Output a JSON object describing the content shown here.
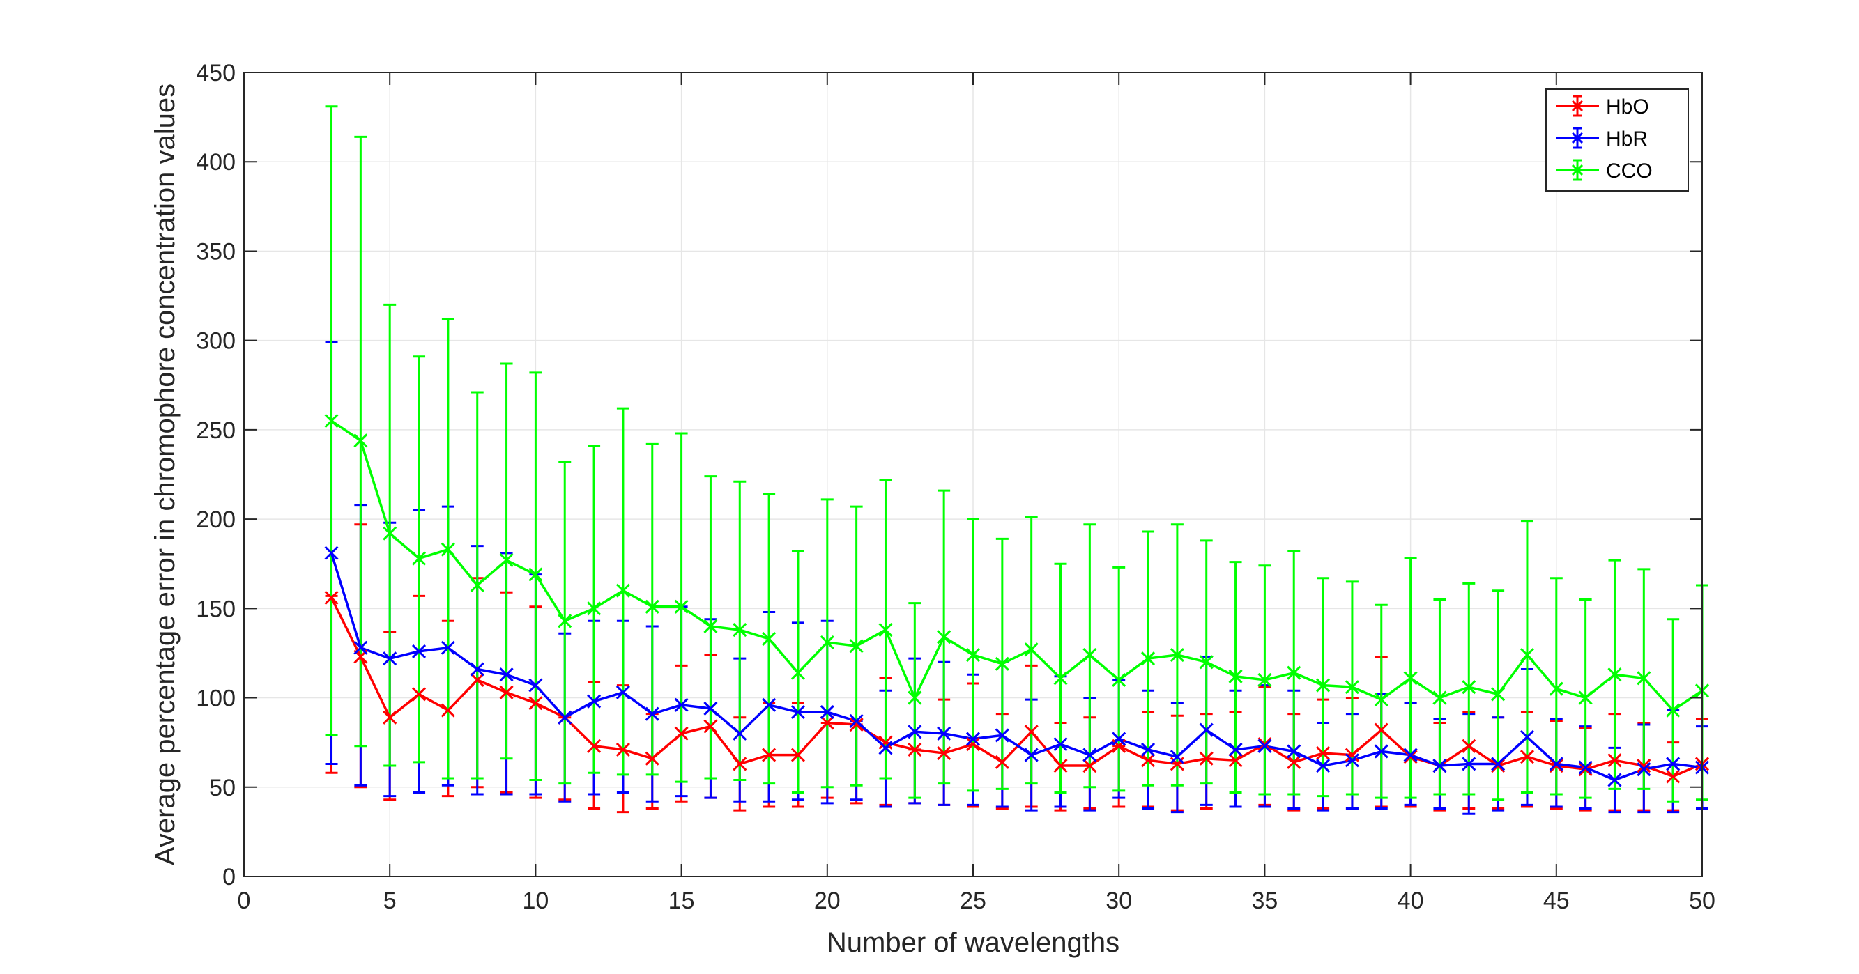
{
  "chart_data": {
    "type": "line",
    "title": "",
    "xlabel": "Number of wavelengths",
    "ylabel": "Average percentage error in chromophore concentration values",
    "xlim": [
      0,
      50
    ],
    "ylim": [
      0,
      450
    ],
    "xticks": [
      0,
      5,
      10,
      15,
      20,
      25,
      30,
      35,
      40,
      45,
      50
    ],
    "yticks": [
      0,
      50,
      100,
      150,
      200,
      250,
      300,
      350,
      400,
      450
    ],
    "grid": true,
    "legend_position": "top-right",
    "error_bars": true,
    "x": [
      3,
      4,
      5,
      6,
      7,
      8,
      9,
      10,
      11,
      12,
      13,
      14,
      15,
      16,
      17,
      18,
      19,
      20,
      21,
      22,
      23,
      24,
      25,
      26,
      27,
      28,
      29,
      30,
      31,
      32,
      33,
      34,
      35,
      36,
      37,
      38,
      39,
      40,
      41,
      42,
      43,
      44,
      45,
      46,
      47,
      48,
      49,
      50
    ],
    "series": [
      {
        "name": "HbO",
        "color": "#ff0000",
        "values": [
          156,
          123,
          89,
          102,
          93,
          110,
          103,
          97,
          89,
          73,
          71,
          66,
          80,
          84,
          63,
          68,
          68,
          86,
          85,
          75,
          71,
          69,
          74,
          64,
          81,
          62,
          62,
          73,
          65,
          63,
          66,
          65,
          74,
          64,
          69,
          68,
          82,
          67,
          62,
          73,
          62,
          67,
          62,
          60,
          65,
          62,
          56,
          63
        ],
        "upper": [
          157,
          197,
          137,
          157,
          143,
          167,
          159,
          151,
          89,
          109,
          107,
          91,
          118,
          124,
          89,
          97,
          97,
          86,
          85,
          111,
          71,
          99,
          108,
          91,
          118,
          86,
          89,
          73,
          92,
          90,
          91,
          92,
          106,
          91,
          99,
          100,
          123,
          97,
          86,
          92,
          89,
          92,
          87,
          83,
          91,
          86,
          75,
          88
        ],
        "lower": [
          58,
          50,
          43,
          47,
          45,
          50,
          47,
          44,
          43,
          38,
          36,
          38,
          42,
          44,
          37,
          39,
          39,
          44,
          41,
          40,
          41,
          40,
          39,
          38,
          39,
          37,
          38,
          39,
          39,
          37,
          38,
          39,
          40,
          37,
          38,
          38,
          39,
          39,
          37,
          38,
          38,
          39,
          38,
          37,
          37,
          37,
          37,
          38
        ]
      },
      {
        "name": "HbR",
        "color": "#0000ff",
        "values": [
          181,
          128,
          122,
          126,
          128,
          116,
          113,
          107,
          89,
          98,
          103,
          91,
          96,
          94,
          80,
          96,
          92,
          92,
          87,
          72,
          81,
          80,
          77,
          79,
          68,
          74,
          68,
          77,
          71,
          67,
          82,
          71,
          73,
          70,
          62,
          65,
          70,
          68,
          62,
          63,
          63,
          78,
          63,
          61,
          54,
          60,
          63,
          61
        ],
        "upper": [
          299,
          208,
          198,
          205,
          207,
          185,
          181,
          169,
          136,
          143,
          143,
          140,
          151,
          144,
          122,
          148,
          142,
          143,
          87,
          104,
          122,
          120,
          113,
          120,
          99,
          112,
          100,
          110,
          104,
          97,
          123,
          104,
          107,
          104,
          86,
          91,
          102,
          97,
          88,
          91,
          89,
          116,
          88,
          84,
          72,
          85,
          93,
          84
        ],
        "lower": [
          63,
          51,
          45,
          47,
          51,
          46,
          46,
          46,
          42,
          46,
          47,
          42,
          45,
          44,
          42,
          42,
          43,
          41,
          43,
          39,
          41,
          40,
          40,
          39,
          37,
          39,
          37,
          44,
          38,
          36,
          40,
          39,
          39,
          38,
          37,
          38,
          38,
          40,
          38,
          35,
          37,
          40,
          39,
          38,
          36,
          36,
          36,
          38
        ]
      },
      {
        "name": "CCO",
        "color": "#00ff00",
        "values": [
          255,
          244,
          192,
          178,
          183,
          163,
          177,
          169,
          143,
          150,
          160,
          151,
          151,
          140,
          138,
          133,
          114,
          131,
          129,
          138,
          100,
          134,
          124,
          119,
          127,
          111,
          124,
          110,
          122,
          124,
          120,
          112,
          110,
          114,
          107,
          106,
          99,
          111,
          100,
          106,
          102,
          124,
          105,
          100,
          113,
          111,
          93,
          104
        ],
        "upper": [
          431,
          414,
          320,
          291,
          312,
          271,
          287,
          282,
          232,
          241,
          262,
          242,
          248,
          224,
          221,
          214,
          182,
          211,
          207,
          222,
          153,
          216,
          200,
          189,
          201,
          175,
          197,
          173,
          193,
          197,
          188,
          176,
          174,
          182,
          167,
          165,
          152,
          178,
          155,
          164,
          160,
          199,
          167,
          155,
          177,
          172,
          144,
          163
        ],
        "lower": [
          79,
          73,
          62,
          64,
          55,
          55,
          66,
          54,
          52,
          58,
          57,
          57,
          53,
          55,
          54,
          52,
          47,
          50,
          51,
          55,
          44,
          52,
          48,
          49,
          52,
          47,
          50,
          48,
          51,
          51,
          52,
          47,
          46,
          46,
          45,
          46,
          44,
          44,
          46,
          46,
          43,
          47,
          46,
          44,
          49,
          49,
          42,
          43
        ]
      }
    ]
  }
}
